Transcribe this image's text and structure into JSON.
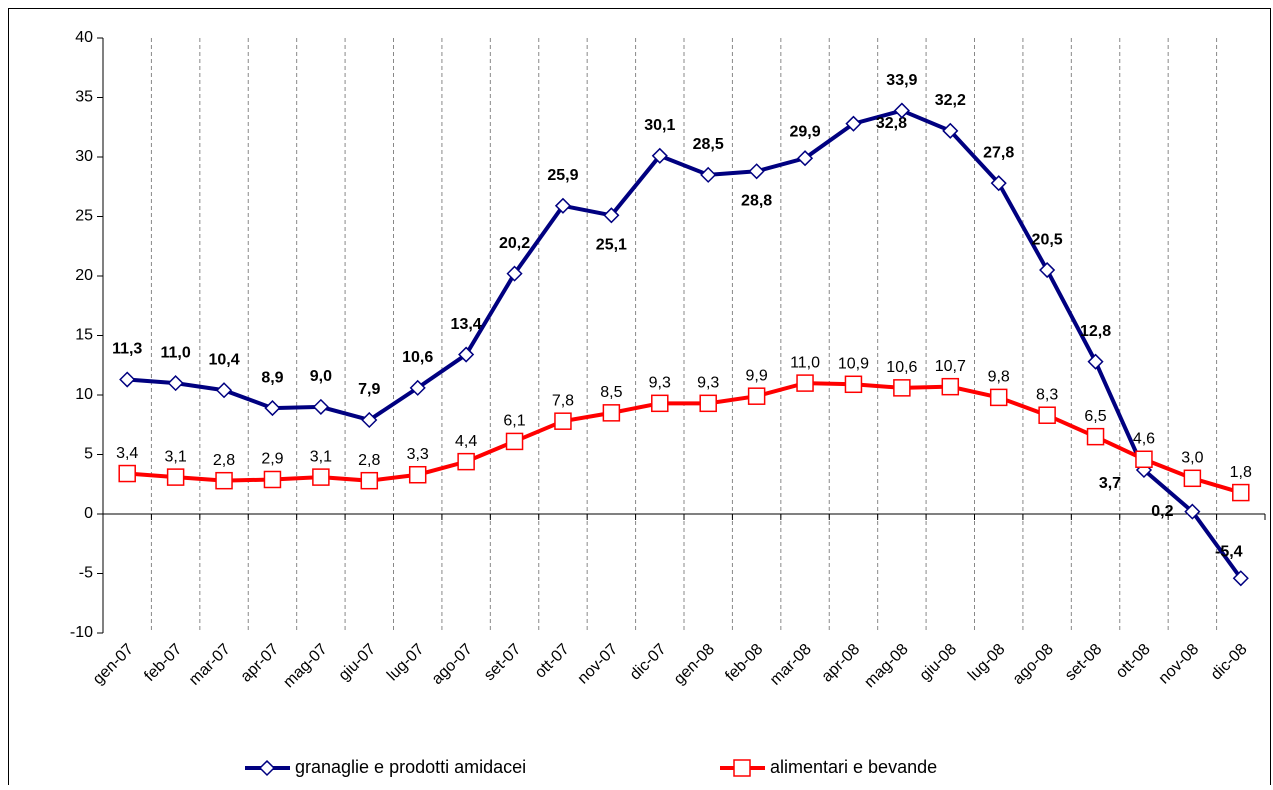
{
  "chart_data": {
    "type": "line",
    "categories": [
      "gen-07",
      "feb-07",
      "mar-07",
      "apr-07",
      "mag-07",
      "giu-07",
      "lug-07",
      "ago-07",
      "set-07",
      "ott-07",
      "nov-07",
      "dic-07",
      "gen-08",
      "feb-08",
      "mar-08",
      "apr-08",
      "mag-08",
      "giu-08",
      "lug-08",
      "ago-08",
      "set-08",
      "ott-08",
      "nov-08",
      "dic-08"
    ],
    "series": [
      {
        "name": "granaglie e prodotti amidacei",
        "color": "#000080",
        "values": [
          11.3,
          11.0,
          10.4,
          8.9,
          9.0,
          7.9,
          10.6,
          13.4,
          20.2,
          25.9,
          25.1,
          30.1,
          28.5,
          28.8,
          29.9,
          32.8,
          33.9,
          32.2,
          27.8,
          20.5,
          12.8,
          3.7,
          0.2,
          -5.4
        ],
        "value_labels": [
          "11,3",
          "11,0",
          "10,4",
          "8,9",
          "9,0",
          "7,9",
          "10,6",
          "13,4",
          "20,2",
          "25,9",
          "25,1",
          "30,1",
          "28,5",
          "28,8",
          "29,9",
          "32,8",
          "33,9",
          "32,2",
          "27,8",
          "20,5",
          "12,8",
          "3,7",
          "0,2",
          "-5,4"
        ]
      },
      {
        "name": "alimentari e bevande",
        "color": "#ff0000",
        "values": [
          3.4,
          3.1,
          2.8,
          2.9,
          3.1,
          2.8,
          3.3,
          4.4,
          6.1,
          7.8,
          8.5,
          9.3,
          9.3,
          9.9,
          11.0,
          10.9,
          10.6,
          10.7,
          9.8,
          8.3,
          6.5,
          4.6,
          3.0,
          1.8
        ],
        "value_labels": [
          "3,4",
          "3,1",
          "2,8",
          "2,9",
          "3,1",
          "2,8",
          "3,3",
          "4,4",
          "6,1",
          "7,8",
          "8,5",
          "9,3",
          "9,3",
          "9,9",
          "11,0",
          "10,9",
          "10,6",
          "10,7",
          "9,8",
          "8,3",
          "6,5",
          "4,6",
          "3,0",
          "1,8"
        ]
      }
    ],
    "ylim": [
      -10,
      40
    ],
    "yticks": [
      -10,
      -5,
      0,
      5,
      10,
      15,
      20,
      25,
      30,
      35,
      40
    ],
    "grid": true
  }
}
